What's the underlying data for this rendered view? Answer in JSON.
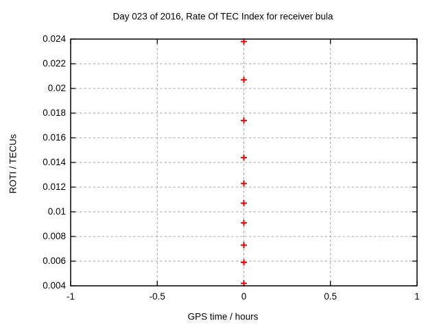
{
  "chart_data": {
    "type": "scatter",
    "title": "Day 023 of 2016, Rate Of TEC Index for receiver bula",
    "xlabel": "GPS time / hours",
    "ylabel": "ROTI / TECUs",
    "xlim": [
      -1,
      1
    ],
    "ylim": [
      0.004,
      0.024
    ],
    "xticks": [
      -1,
      -0.5,
      0,
      0.5,
      1
    ],
    "xtick_labels": [
      "-1",
      "-0.5",
      "0",
      "0.5",
      "1"
    ],
    "yticks": [
      0.004,
      0.006,
      0.008,
      0.01,
      0.012,
      0.014,
      0.016,
      0.018,
      0.02,
      0.022,
      0.024
    ],
    "ytick_labels": [
      "0.004",
      "0.006",
      "0.008",
      "0.01",
      "0.012",
      "0.014",
      "0.016",
      "0.018",
      "0.02",
      "0.022",
      "0.024"
    ],
    "grid": true,
    "legend": "none",
    "marker": "plus",
    "series": [
      {
        "points": [
          {
            "x": 0,
            "y": 0.0238
          },
          {
            "x": 0,
            "y": 0.0207
          },
          {
            "x": 0,
            "y": 0.0174
          },
          {
            "x": 0,
            "y": 0.0144
          },
          {
            "x": 0,
            "y": 0.0123
          },
          {
            "x": 0,
            "y": 0.0107
          },
          {
            "x": 0,
            "y": 0.0091
          },
          {
            "x": 0,
            "y": 0.0073
          },
          {
            "x": 0,
            "y": 0.0059
          },
          {
            "x": 0,
            "y": 0.0042
          }
        ]
      }
    ],
    "colors": {
      "marker": "#e60000",
      "grid": "#a6a6a6",
      "border": "#000000",
      "text": "#000000",
      "background": "#ffffff"
    }
  }
}
